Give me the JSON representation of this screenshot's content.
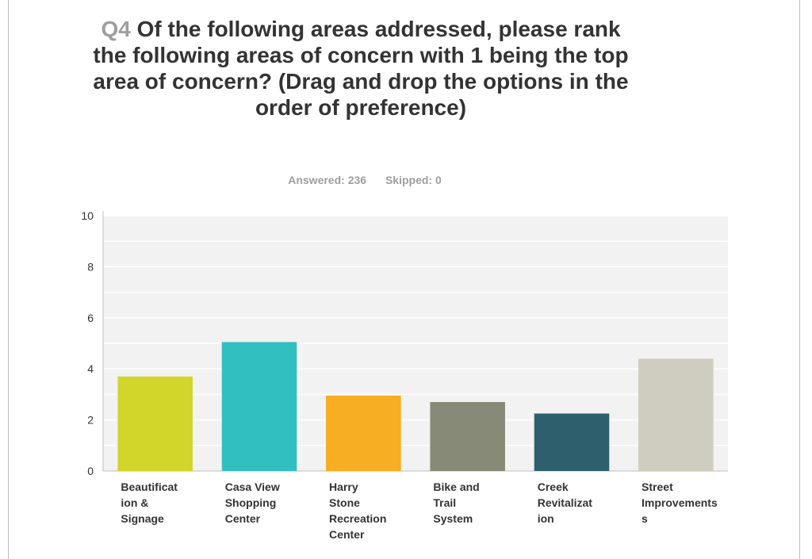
{
  "survey": {
    "question_number": "Q4",
    "question_text": "Of the following areas addressed, please rank the following areas of concern with 1 being the top area of concern? (Drag and drop the options in the order of preference)",
    "answered": "Answered: 236",
    "skipped": "Skipped: 0"
  },
  "chart_data": {
    "type": "bar",
    "categories": [
      "Beautification & Signage",
      "Casa View Shopping Center",
      "Harry Stone Recreation Center",
      "Bike and Trail System",
      "Creek Revitalization",
      "Street Improvements"
    ],
    "category_label_lines": [
      [
        "Beautificat",
        "ion &",
        "Signage"
      ],
      [
        "Casa View",
        "Shopping",
        "Center"
      ],
      [
        "Harry",
        "Stone",
        "Recreation",
        "Center"
      ],
      [
        "Bike and",
        "Trail",
        "System"
      ],
      [
        "Creek",
        "Revitalizat",
        "ion"
      ],
      [
        "Street",
        "Improvements",
        "s"
      ]
    ],
    "values": [
      3.7,
      5.05,
      2.95,
      2.7,
      2.25,
      4.4
    ],
    "colors": [
      "#d2d52a",
      "#32bfc0",
      "#f7ae22",
      "#888a78",
      "#2e5f6c",
      "#cfcdbf"
    ],
    "ylim": [
      0,
      10
    ],
    "yticks": [
      0,
      2,
      4,
      6,
      8,
      10
    ],
    "grid": true,
    "plot_background": "#f2f2f2",
    "gridline_color": "#ffffff"
  }
}
